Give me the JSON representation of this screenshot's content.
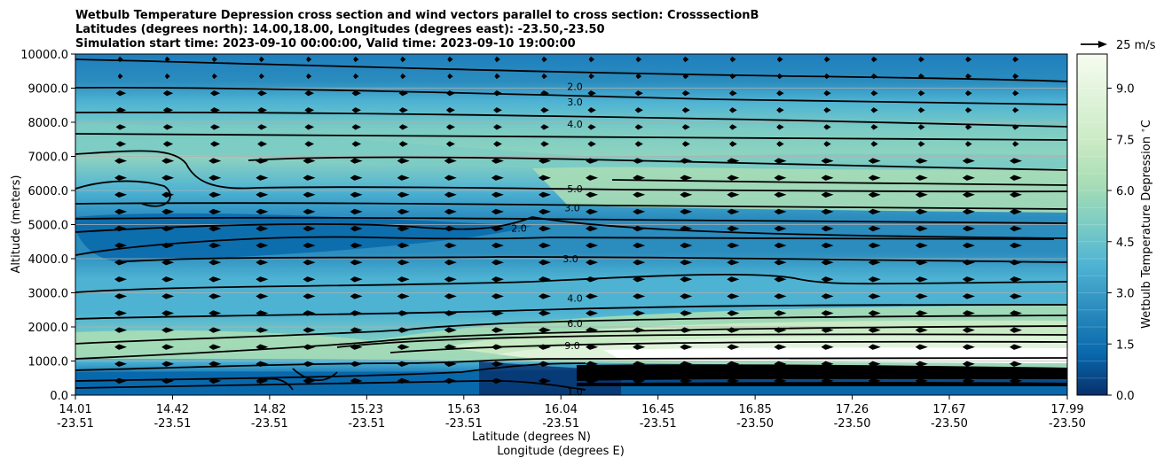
{
  "chart_data": {
    "type": "heatmap",
    "title_lines": [
      "Wetbulb Temperature Depression cross section and wind vectors parallel to cross section: CrosssectionB",
      "Latitudes (degrees north): 14.00,18.00, Longitudes (degrees east): -23.50,-23.50",
      "Simulation start time: 2023-09-10 00:00:00, Valid time: 2023-09-10 19:00:00"
    ],
    "xlabel_lat": "Latitude (degrees N)",
    "xlabel_lon": "Longitude (degrees E)",
    "ylabel": "Altitude (meters)",
    "x_ticks": [
      {
        "lat": "14.01",
        "lon": "-23.51"
      },
      {
        "lat": "14.42",
        "lon": "-23.51"
      },
      {
        "lat": "14.82",
        "lon": "-23.51"
      },
      {
        "lat": "15.23",
        "lon": "-23.51"
      },
      {
        "lat": "15.63",
        "lon": "-23.51"
      },
      {
        "lat": "16.04",
        "lon": "-23.51"
      },
      {
        "lat": "16.45",
        "lon": "-23.51"
      },
      {
        "lat": "16.85",
        "lon": "-23.50"
      },
      {
        "lat": "17.26",
        "lon": "-23.50"
      },
      {
        "lat": "17.67",
        "lon": "-23.50"
      },
      {
        "lat": "17.99",
        "lon": "-23.50"
      }
    ],
    "y_ticks": [
      "0.0",
      "1000.0",
      "2000.0",
      "3000.0",
      "4000.0",
      "5000.0",
      "6000.0",
      "7000.0",
      "8000.0",
      "9000.0",
      "10000.0"
    ],
    "ylim": [
      0,
      10000
    ],
    "grid": "horizontal",
    "colorbar_label": "Wetbulb Temperature Depression $^\\circ$C",
    "colorbar_ticks": [
      "0.0",
      "1.5",
      "3.0",
      "4.5",
      "6.0",
      "7.5",
      "9.0"
    ],
    "colorbar_range": [
      0,
      10
    ],
    "colormap": [
      "#08306b",
      "#0868ac",
      "#2b8cbe",
      "#4eb3d3",
      "#7bccc4",
      "#a8ddb5",
      "#ccebc5",
      "#e0f3db",
      "#f7fcf0"
    ],
    "quiver_key_label": "25 m/s",
    "contour_lines": [
      {
        "label": "2.0",
        "alt": 9050
      },
      {
        "label": "3.0",
        "alt": 8600
      },
      {
        "label": "4.0",
        "alt": 7950
      },
      {
        "label": "5.0",
        "alt": 6050
      },
      {
        "label": "3.0",
        "alt": 5500
      },
      {
        "label": "2.0",
        "alt": 4900
      },
      {
        "label": "3.0",
        "alt": 4000
      },
      {
        "label": "4.0",
        "alt": 2850
      },
      {
        "label": "6.0",
        "alt": 2100
      },
      {
        "label": "9.0",
        "alt": 1450
      },
      {
        "label": "1.0",
        "alt": 100
      }
    ]
  }
}
